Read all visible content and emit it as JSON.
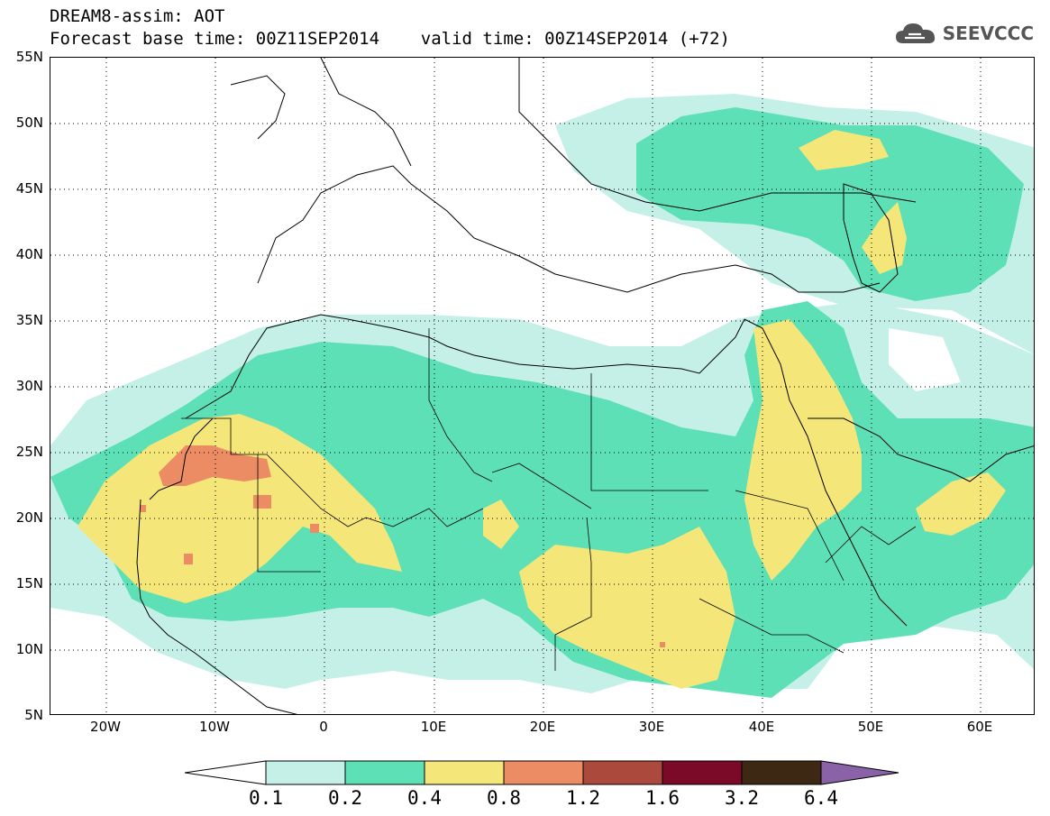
{
  "header": {
    "line1": "DREAM8-assim: AOT",
    "line2": "Forecast base time: 00Z11SEP2014    valid time: 00Z14SEP2014 (+72)"
  },
  "logo": {
    "text": "SEEVCCC",
    "icon": "cloud-icon"
  },
  "map": {
    "lat_labels": [
      "55N",
      "50N",
      "45N",
      "40N",
      "35N",
      "30N",
      "25N",
      "20N",
      "15N",
      "10N",
      "5N"
    ],
    "lon_labels": [
      "20W",
      "10W",
      "0",
      "10E",
      "20E",
      "30E",
      "40E",
      "50E",
      "60E"
    ],
    "lon_range": [
      -25,
      65
    ],
    "lat_range": [
      5,
      55
    ]
  },
  "colorbar": {
    "labels": [
      "0.1",
      "0.2",
      "0.4",
      "0.8",
      "1.2",
      "1.6",
      "3.2",
      "6.4"
    ],
    "colors": [
      "#ffffff",
      "#c4f0e8",
      "#5ee0b6",
      "#f5e67a",
      "#ec8c64",
      "#ab4a3c",
      "#7a0a28",
      "#3d2814",
      "#8a62a8"
    ]
  }
}
